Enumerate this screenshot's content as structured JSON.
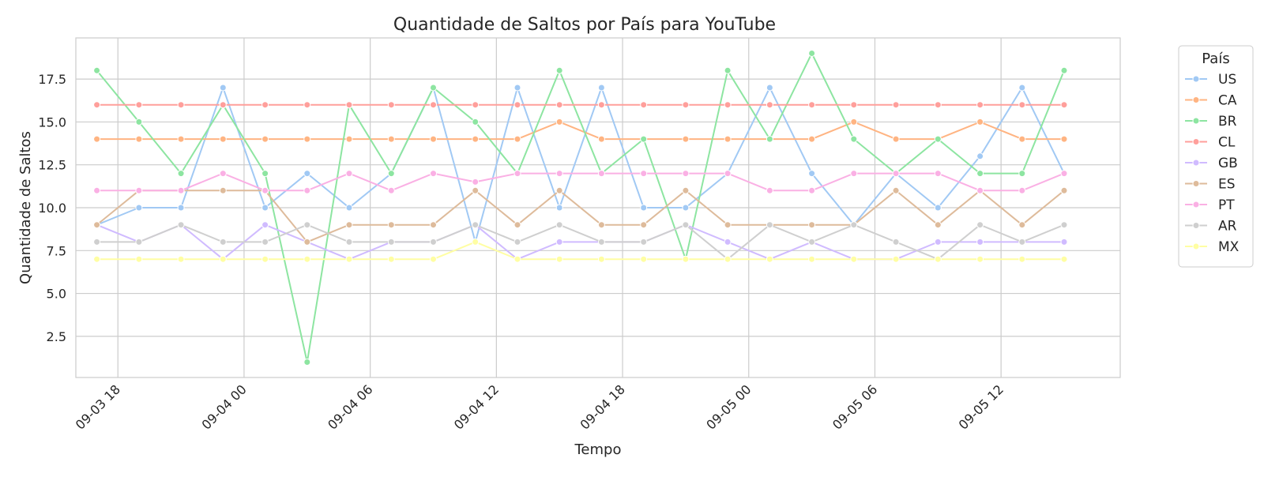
{
  "chart_data": {
    "type": "line",
    "title": "Quantidade de Saltos por País para YouTube",
    "xlabel": "Tempo",
    "ylabel": "Quantidade de Saltos",
    "x_ticks": [
      "09-03 18",
      "09-04 00",
      "09-04 06",
      "09-04 12",
      "09-04 18",
      "09-05 00",
      "09-05 06",
      "09-05 12"
    ],
    "y_ticks": [
      "2.5",
      "5.0",
      "7.5",
      "10.0",
      "12.5",
      "15.0",
      "17.5"
    ],
    "xlim": [
      "2024-09-03 16:00",
      "2024-09-05 17:40"
    ],
    "ylim": [
      0.1,
      19.9
    ],
    "grid": true,
    "legend_title": "País",
    "legend_position": "outside-right",
    "x": [
      "2024-09-03 17:00",
      "2024-09-03 19:00",
      "2024-09-03 21:00",
      "2024-09-03 23:00",
      "2024-09-04 01:00",
      "2024-09-04 03:00",
      "2024-09-04 05:00",
      "2024-09-04 07:00",
      "2024-09-04 09:00",
      "2024-09-04 11:00",
      "2024-09-04 13:00",
      "2024-09-04 15:00",
      "2024-09-04 17:00",
      "2024-09-04 19:00",
      "2024-09-04 21:00",
      "2024-09-04 23:00",
      "2024-09-05 01:00",
      "2024-09-05 03:00",
      "2024-09-05 05:00",
      "2024-09-05 07:00",
      "2024-09-05 09:00",
      "2024-09-05 11:00",
      "2024-09-05 13:00",
      "2024-09-05 15:00"
    ],
    "series": [
      {
        "name": "US",
        "color": "#a1c9f4",
        "values": [
          9,
          10,
          10,
          17,
          10,
          12,
          10,
          12,
          17,
          8,
          17,
          10,
          17,
          10,
          10,
          12,
          17,
          12,
          9,
          12,
          10,
          13,
          17,
          12
        ]
      },
      {
        "name": "CA",
        "color": "#ffb482",
        "values": [
          14,
          14,
          14,
          14,
          14,
          14,
          14,
          14,
          14,
          14,
          14,
          15,
          14,
          14,
          14,
          14,
          14,
          14,
          15,
          14,
          14,
          15,
          14,
          14
        ]
      },
      {
        "name": "BR",
        "color": "#8de5a1",
        "values": [
          18,
          15,
          12,
          16,
          12,
          1,
          16,
          12,
          17,
          15,
          12,
          18,
          12,
          14,
          7,
          18,
          14,
          19,
          14,
          12,
          14,
          12,
          12,
          18
        ]
      },
      {
        "name": "CL",
        "color": "#ff9f9b",
        "values": [
          16,
          16,
          16,
          16,
          16,
          16,
          16,
          16,
          16,
          16,
          16,
          16,
          16,
          16,
          16,
          16,
          16,
          16,
          16,
          16,
          16,
          16,
          16,
          16
        ]
      },
      {
        "name": "GB",
        "color": "#d0bbff",
        "values": [
          9,
          8,
          9,
          7,
          9,
          8,
          7,
          8,
          8,
          9,
          7,
          8,
          8,
          8,
          9,
          8,
          7,
          8,
          7,
          7,
          8,
          8,
          8,
          8
        ]
      },
      {
        "name": "ES",
        "color": "#debb9b",
        "values": [
          9,
          11,
          11,
          11,
          11,
          8,
          9,
          9,
          9,
          11,
          9,
          11,
          9,
          9,
          11,
          9,
          9,
          9,
          9,
          11,
          9,
          11,
          9,
          11
        ]
      },
      {
        "name": "PT",
        "color": "#fab0e4",
        "values": [
          11,
          11,
          11,
          12,
          11,
          11,
          12,
          11,
          12,
          11.5,
          12,
          12,
          12,
          12,
          12,
          12,
          11,
          11,
          12,
          12,
          12,
          11,
          11,
          12
        ]
      },
      {
        "name": "AR",
        "color": "#cfcfcf",
        "values": [
          8,
          8,
          9,
          8,
          8,
          9,
          8,
          8,
          8,
          9,
          8,
          9,
          8,
          8,
          9,
          7,
          9,
          8,
          9,
          8,
          7,
          9,
          8,
          9
        ]
      },
      {
        "name": "MX",
        "color": "#fffea3",
        "values": [
          7,
          7,
          7,
          7,
          7,
          7,
          7,
          7,
          7,
          8,
          7,
          7,
          7,
          7,
          7,
          7,
          7,
          7,
          7,
          7,
          7,
          7,
          7,
          7
        ]
      }
    ]
  }
}
